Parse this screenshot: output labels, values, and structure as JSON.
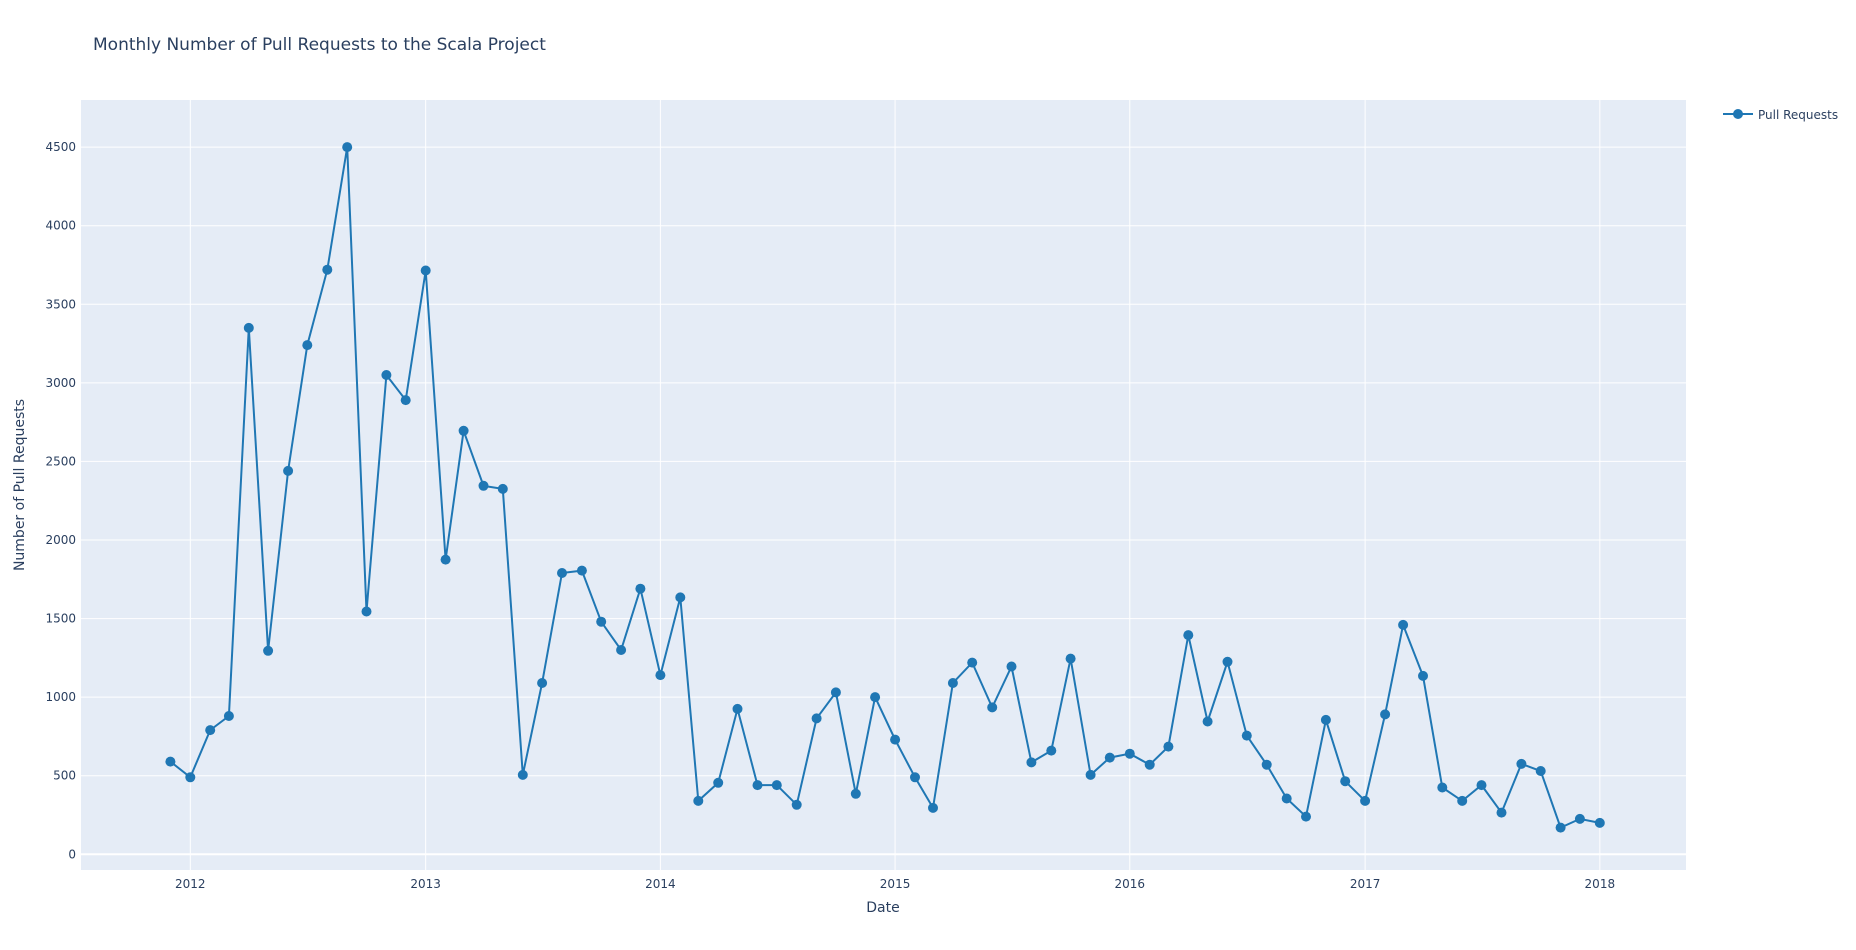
{
  "chart_data": {
    "type": "line",
    "title": "Monthly Number of Pull Requests to the Scala Project",
    "xlabel": "Date",
    "ylabel": "Number of Pull Requests",
    "ylim": [
      -100,
      4800
    ],
    "xlim": [
      "2011-07-15",
      "2018-05-15"
    ],
    "x_tick_labels": [
      "2012",
      "2013",
      "2014",
      "2015",
      "2016",
      "2017",
      "2018"
    ],
    "y_ticks": [
      0,
      500,
      1000,
      1500,
      2000,
      2500,
      3000,
      3500,
      4000,
      4500
    ],
    "grid": true,
    "legend_position": "top-right",
    "series": [
      {
        "name": "Pull Requests",
        "color": "#1f77b4",
        "x": [
          "2011-12-01",
          "2012-01-01",
          "2012-02-01",
          "2012-03-01",
          "2012-04-01",
          "2012-05-01",
          "2012-06-01",
          "2012-07-01",
          "2012-08-01",
          "2012-09-01",
          "2012-10-01",
          "2012-11-01",
          "2012-12-01",
          "2013-01-01",
          "2013-02-01",
          "2013-03-01",
          "2013-04-01",
          "2013-05-01",
          "2013-06-01",
          "2013-07-01",
          "2013-08-01",
          "2013-09-01",
          "2013-10-01",
          "2013-11-01",
          "2013-12-01",
          "2014-01-01",
          "2014-02-01",
          "2014-03-01",
          "2014-04-01",
          "2014-05-01",
          "2014-06-01",
          "2014-07-01",
          "2014-08-01",
          "2014-09-01",
          "2014-10-01",
          "2014-11-01",
          "2014-12-01",
          "2015-01-01",
          "2015-02-01",
          "2015-03-01",
          "2015-04-01",
          "2015-05-01",
          "2015-06-01",
          "2015-07-01",
          "2015-08-01",
          "2015-09-01",
          "2015-10-01",
          "2015-11-01",
          "2015-12-01",
          "2016-01-01",
          "2016-02-01",
          "2016-03-01",
          "2016-04-01",
          "2016-05-01",
          "2016-06-01",
          "2016-07-01",
          "2016-08-01",
          "2016-09-01",
          "2016-10-01",
          "2016-11-01",
          "2016-12-01",
          "2017-01-01",
          "2017-02-01",
          "2017-03-01",
          "2017-04-01",
          "2017-05-01",
          "2017-06-01",
          "2017-07-01",
          "2017-08-01",
          "2017-09-01",
          "2017-10-01",
          "2017-11-01",
          "2017-12-01",
          "2018-01-01"
        ],
        "y": [
          590,
          490,
          790,
          880,
          3350,
          1295,
          2440,
          3240,
          3720,
          4500,
          1545,
          3050,
          2890,
          3715,
          1875,
          2695,
          2345,
          2325,
          505,
          1090,
          1790,
          1805,
          1480,
          1300,
          1690,
          1140,
          1635,
          340,
          455,
          925,
          440,
          440,
          315,
          865,
          1030,
          385,
          1000,
          730,
          490,
          295,
          1090,
          1220,
          935,
          1195,
          585,
          660,
          1245,
          505,
          615,
          640,
          570,
          685,
          1395,
          845,
          1225,
          755,
          570,
          355,
          240,
          855,
          465,
          340,
          890,
          1460,
          1135,
          425,
          340,
          440,
          265,
          575,
          530,
          170,
          225,
          200
        ]
      }
    ]
  }
}
